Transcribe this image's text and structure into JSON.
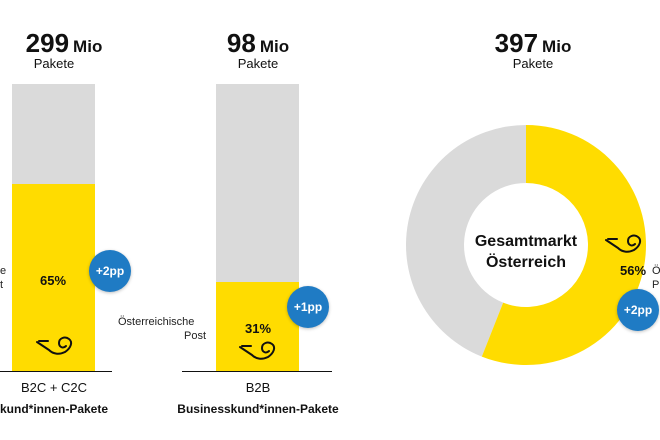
{
  "colors": {
    "post": "#ffdc00",
    "rest": "#dadada",
    "badge": "#1f7bc4"
  },
  "chart_data": [
    {
      "type": "bar",
      "total": {
        "value": "299",
        "unit": "Mio",
        "label": "Pakete"
      },
      "category": "B2C + C2C",
      "category_title": "kund*innen-Pakete",
      "side_label": [
        "e",
        "t"
      ],
      "share": 65,
      "share_label": "65%",
      "change_label": "+2pp"
    },
    {
      "type": "bar",
      "total": {
        "value": "98",
        "unit": "Mio",
        "label": "Pakete"
      },
      "category": "B2B",
      "category_title": "Businesskund*innen-Pakete",
      "side_label": [
        "Österreichische",
        "Post"
      ],
      "share": 31,
      "share_label": "31%",
      "change_label": "+1pp"
    },
    {
      "type": "pie",
      "total": {
        "value": "397",
        "unit": "Mio",
        "label": "Pakete"
      },
      "center_label": [
        "Gesamtmarkt",
        "Österreich"
      ],
      "share": 56,
      "share_label": "56%",
      "side_label": [
        "Ö",
        "P"
      ],
      "change_label": "+2pp"
    }
  ]
}
